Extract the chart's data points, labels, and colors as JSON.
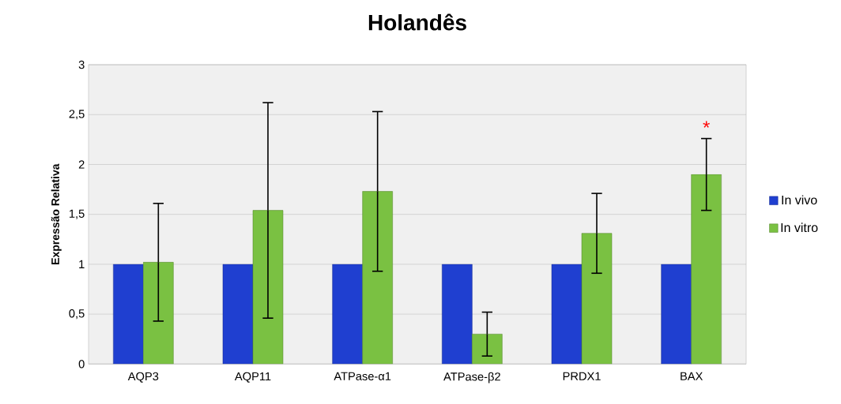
{
  "chart_data": {
    "type": "bar",
    "title": "Holandês",
    "ylabel": "Expressão Relativa",
    "categories": [
      "AQP3",
      "AQP11",
      "ATPase-α1",
      "ATPase-β2",
      "PRDX1",
      "BAX"
    ],
    "series": [
      {
        "name": "In vivo",
        "color": "#1f3fd0",
        "values": [
          1,
          1,
          1,
          1,
          1,
          1
        ]
      },
      {
        "name": "In vitro",
        "color": "#7ac142",
        "values": [
          1.02,
          1.54,
          1.73,
          0.3,
          1.31,
          1.9
        ],
        "errors": [
          0.59,
          1.08,
          0.8,
          0.22,
          0.4,
          0.36
        ]
      }
    ],
    "ylim": [
      0,
      3
    ],
    "yticks": [
      0,
      {
        "value": 0.5,
        "label": "0,5"
      },
      1,
      {
        "value": 1.5,
        "label": "1,5"
      },
      2,
      {
        "value": 2.5,
        "label": "2,5"
      },
      3
    ],
    "grid": "y",
    "legend": "right",
    "annotations": [
      "*"
    ]
  }
}
